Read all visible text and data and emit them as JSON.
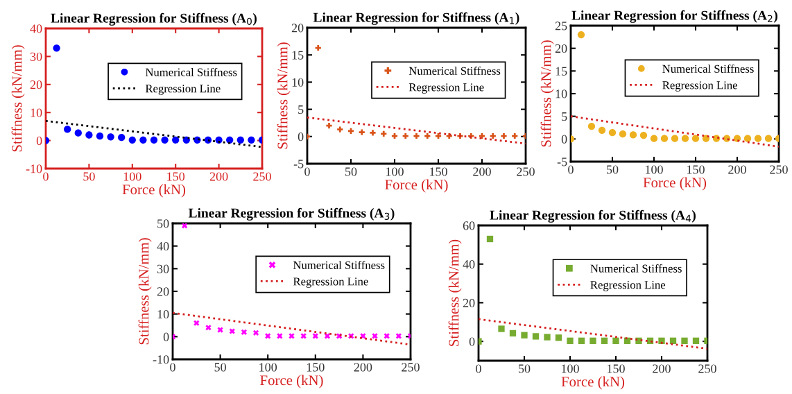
{
  "chart_data": [
    {
      "type": "scatter",
      "title": "Linear Regression for Stiffness (A$_{0}$)",
      "xlabel": "Force (kN)",
      "ylabel": "Stiffness (kN/mm)",
      "xlim": [
        0,
        250
      ],
      "ylim": [
        -10,
        40
      ],
      "xticks": [
        0,
        50,
        100,
        150,
        200,
        250
      ],
      "yticks": [
        -10,
        0,
        10,
        20,
        30,
        40
      ],
      "legend": "top right",
      "grid": false,
      "series": [
        {
          "name": "Numerical Stiffness",
          "marker": "circle",
          "color": "#0000ff",
          "x": [
            0,
            12.5,
            25,
            37.5,
            50,
            62.5,
            75,
            87.5,
            100,
            112.5,
            125,
            137.5,
            150,
            162.5,
            175,
            187.5,
            200,
            212.5,
            225,
            237.5,
            250
          ],
          "values": [
            0,
            33,
            4,
            2.7,
            2,
            1.6,
            1.3,
            1.1,
            0.2,
            0.2,
            0.2,
            0.2,
            0.2,
            0.2,
            0.2,
            0.2,
            0.2,
            0.2,
            0.2,
            0.2,
            0.2
          ]
        },
        {
          "name": "Regression Line",
          "type": "line",
          "line_style": "dotted",
          "color": "#000000",
          "x": [
            0,
            250
          ],
          "values": [
            7,
            -2.3
          ]
        }
      ]
    },
    {
      "type": "scatter",
      "title": "Linear Regression for Stiffness (A$_{1}$)",
      "xlabel": "Force (kN)",
      "ylabel": "Stiffness (kN/mm)",
      "xlim": [
        0,
        250
      ],
      "ylim": [
        -5,
        20
      ],
      "xticks": [
        0,
        50,
        100,
        150,
        200,
        250
      ],
      "yticks": [
        -5,
        0,
        5,
        10,
        15,
        20
      ],
      "legend": "top right",
      "grid": false,
      "series": [
        {
          "name": "Numerical Stiffness",
          "marker": "plus",
          "color": "#d95319",
          "x": [
            0,
            12.5,
            25,
            37.5,
            50,
            62.5,
            75,
            87.5,
            100,
            112.5,
            125,
            137.5,
            150,
            162.5,
            175,
            187.5,
            200,
            212.5,
            225,
            237.5,
            250
          ],
          "values": [
            0,
            16.3,
            2,
            1.3,
            1,
            0.8,
            0.7,
            0.5,
            0.1,
            0.1,
            0.1,
            0.1,
            0.1,
            0.1,
            0.1,
            0.1,
            0.1,
            0.1,
            0.1,
            0.1,
            0.1
          ]
        },
        {
          "name": "Regression Line",
          "type": "line",
          "line_style": "dotted",
          "color": "#d62020",
          "x": [
            0,
            250
          ],
          "values": [
            3.5,
            -1.3
          ]
        }
      ]
    },
    {
      "type": "scatter",
      "title": "Linear Regression for Stiffness (A$_{2}$)",
      "xlabel": "Force (kN)",
      "ylabel": "Stiffness (kN/mm)",
      "xlim": [
        0,
        250
      ],
      "ylim": [
        -5,
        25
      ],
      "xticks": [
        0,
        50,
        100,
        150,
        200,
        250
      ],
      "yticks": [
        -5,
        0,
        5,
        10,
        15,
        20,
        25
      ],
      "legend": "top right",
      "grid": false,
      "series": [
        {
          "name": "Numerical Stiffness",
          "marker": "circle",
          "color": "#edb120",
          "x": [
            0,
            12.5,
            25,
            37.5,
            50,
            62.5,
            75,
            87.5,
            100,
            112.5,
            125,
            137.5,
            150,
            162.5,
            175,
            187.5,
            200,
            212.5,
            225,
            237.5,
            250
          ],
          "values": [
            0,
            23,
            2.8,
            1.9,
            1.4,
            1.1,
            0.9,
            0.8,
            0.1,
            0.1,
            0.1,
            0.1,
            0.1,
            0.1,
            0.1,
            0.1,
            0.1,
            0.1,
            0.1,
            0.1,
            0.1
          ]
        },
        {
          "name": "Regression Line",
          "type": "line",
          "line_style": "dotted",
          "color": "#d62020",
          "x": [
            0,
            250
          ],
          "values": [
            5,
            -1.7
          ]
        }
      ]
    },
    {
      "type": "scatter",
      "title": "Linear Regression for Stiffness (A$_{3}$)",
      "xlabel": "Force (kN)",
      "ylabel": "Stiffness (kN/mm)",
      "xlim": [
        0,
        250
      ],
      "ylim": [
        -10,
        50
      ],
      "xticks": [
        0,
        50,
        100,
        150,
        200,
        250
      ],
      "yticks": [
        -10,
        0,
        10,
        20,
        30,
        40,
        50
      ],
      "legend": "right",
      "grid": false,
      "series": [
        {
          "name": "Numerical Stiffness",
          "marker": "cross",
          "color": "#ff00ff",
          "x": [
            0,
            12.5,
            25,
            37.5,
            50,
            62.5,
            75,
            87.5,
            100,
            112.5,
            125,
            137.5,
            150,
            162.5,
            175,
            187.5,
            200,
            212.5,
            225,
            237.5,
            250
          ],
          "values": [
            0,
            49,
            6,
            4,
            3,
            2.4,
            2,
            1.7,
            0.3,
            0.3,
            0.3,
            0.3,
            0.3,
            0.3,
            0.3,
            0.3,
            0.3,
            0.3,
            0.3,
            0.3,
            0.3
          ]
        },
        {
          "name": "Regression Line",
          "type": "line",
          "line_style": "dotted",
          "color": "#d62020",
          "x": [
            0,
            250
          ],
          "values": [
            10.5,
            -3.5
          ]
        }
      ]
    },
    {
      "type": "scatter",
      "title": "Linear Regression for Stiffness (A$_{4}$)",
      "xlabel": "Force (kN)",
      "ylabel": "Stiffness (kN/mm)",
      "xlim": [
        0,
        250
      ],
      "ylim": [
        -10,
        60
      ],
      "xticks": [
        0,
        50,
        100,
        150,
        200,
        250
      ],
      "yticks": [
        0,
        20,
        40,
        60
      ],
      "legend": "top right",
      "grid": false,
      "series": [
        {
          "name": "Numerical Stiffness",
          "marker": "square",
          "color": "#77ac30",
          "x": [
            0,
            12.5,
            25,
            37.5,
            50,
            62.5,
            75,
            87.5,
            100,
            112.5,
            125,
            137.5,
            150,
            162.5,
            175,
            187.5,
            200,
            212.5,
            225,
            237.5,
            250
          ],
          "values": [
            0,
            53,
            6.5,
            4.2,
            3.2,
            2.6,
            2.2,
            1.9,
            0.3,
            0.3,
            0.3,
            0.3,
            0.3,
            0.3,
            0.3,
            0.3,
            0.3,
            0.3,
            0.3,
            0.3,
            0.3
          ]
        },
        {
          "name": "Regression Line",
          "type": "line",
          "line_style": "dotted",
          "color": "#d62020",
          "x": [
            0,
            250
          ],
          "values": [
            11.5,
            -3.8
          ]
        }
      ]
    }
  ]
}
